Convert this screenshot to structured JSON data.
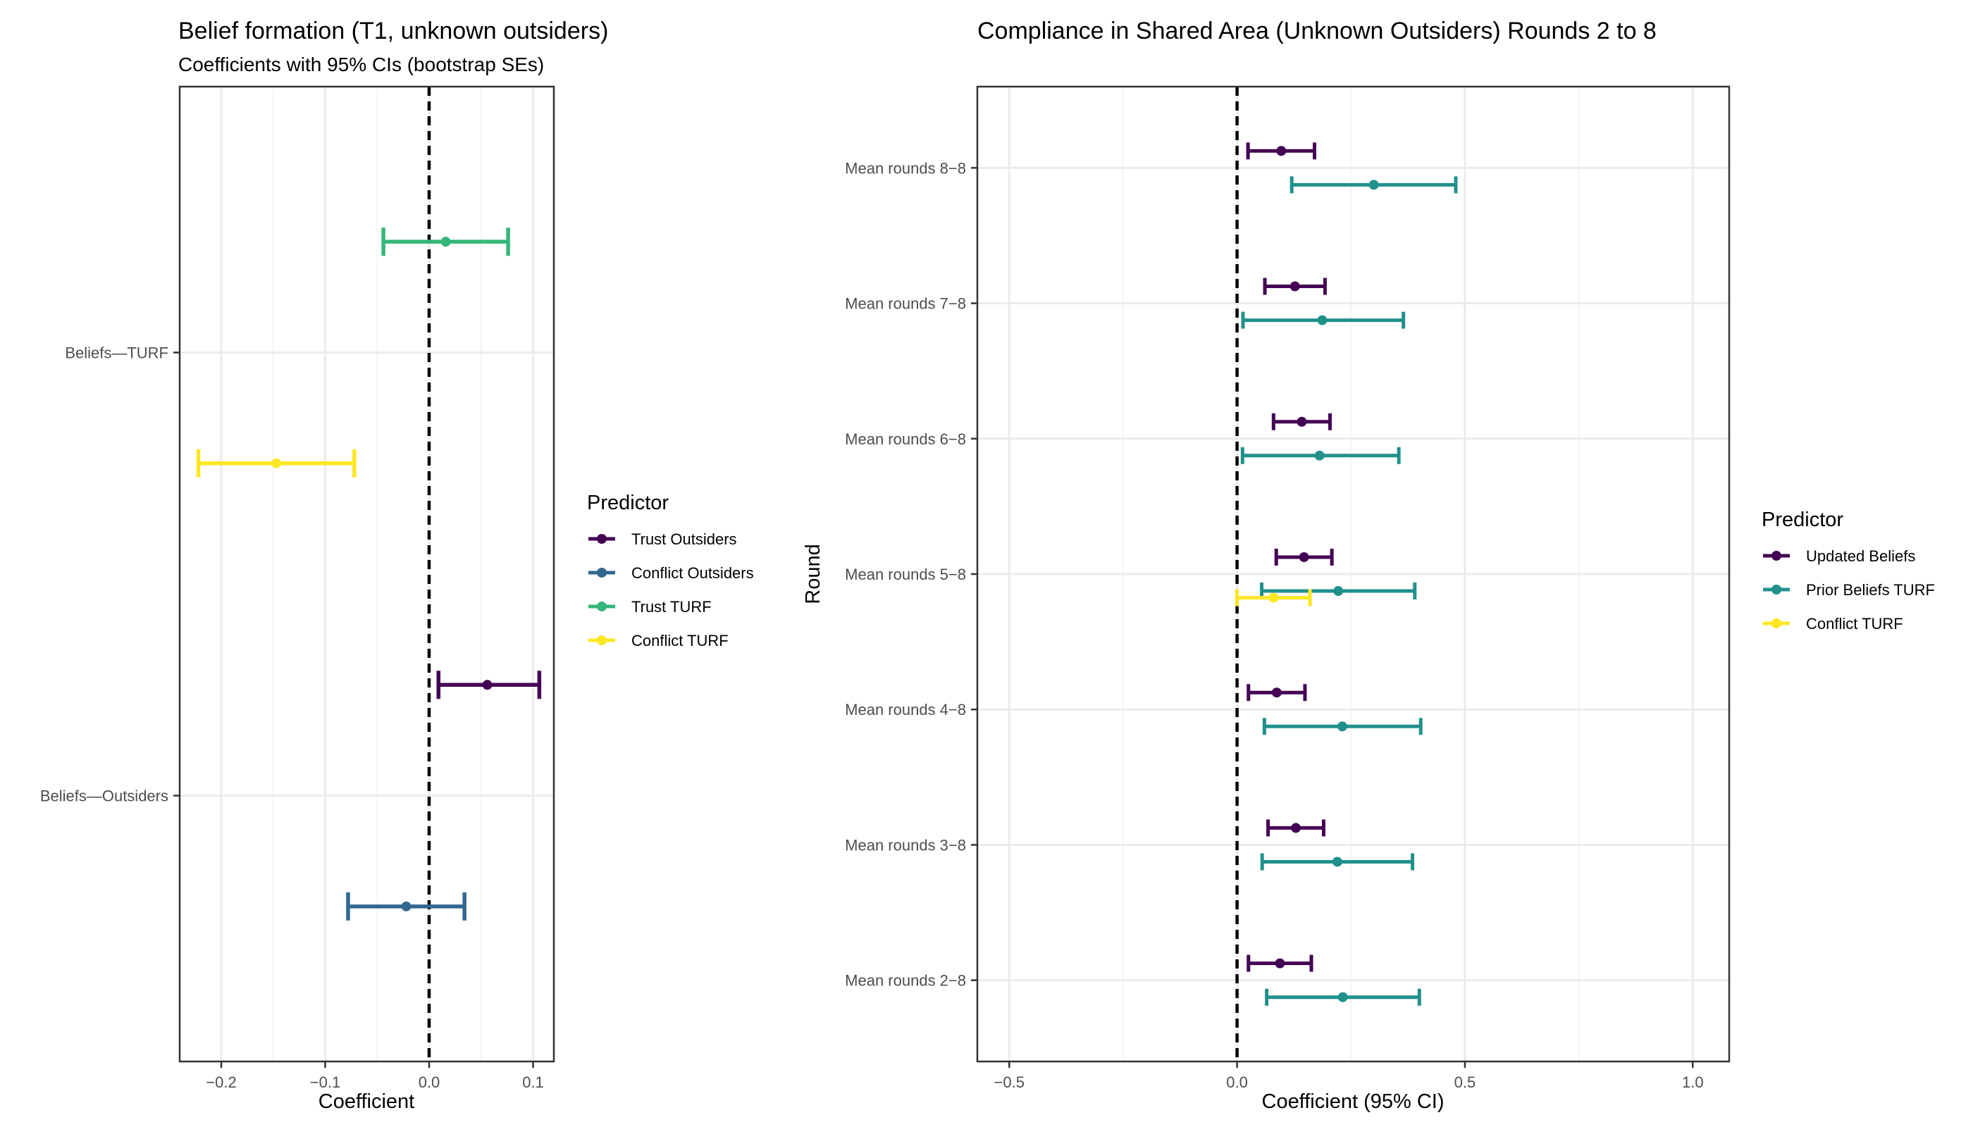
{
  "chart_data": [
    {
      "type": "errorbar",
      "title": "Belief formation (T1, unknown outsiders)",
      "subtitle": "Coefficients with 95% CIs (bootstrap SEs)",
      "xlabel": "Coefficient",
      "ylabel": "",
      "xlim": [
        -0.24,
        0.12
      ],
      "x_ticks": [
        -0.2,
        -0.1,
        0.0,
        0.1
      ],
      "x_tick_labels": [
        "−0.2",
        "−0.1",
        "0.0",
        "0.1"
      ],
      "categories": [
        "Beliefs—Outsiders",
        "Beliefs—TURF"
      ],
      "reference_line": 0.0,
      "grid": true,
      "legend": {
        "title": "Predictor",
        "position": "right",
        "entries": [
          "Trust Outsiders",
          "Conflict Outsiders",
          "Trust TURF",
          "Conflict TURF"
        ]
      },
      "series": [
        {
          "name": "Trust Outsiders",
          "color": "#440154",
          "points": [
            {
              "category": "Beliefs—Outsiders",
              "estimate": 0.056,
              "low": 0.009,
              "high": 0.106
            }
          ]
        },
        {
          "name": "Conflict Outsiders",
          "color": "#31688e",
          "points": [
            {
              "category": "Beliefs—Outsiders",
              "estimate": -0.022,
              "low": -0.078,
              "high": 0.034
            }
          ]
        },
        {
          "name": "Trust TURF",
          "color": "#35b779",
          "points": [
            {
              "category": "Beliefs—TURF",
              "estimate": 0.016,
              "low": -0.044,
              "high": 0.076
            }
          ]
        },
        {
          "name": "Conflict TURF",
          "color": "#fde725",
          "points": [
            {
              "category": "Beliefs—TURF",
              "estimate": -0.147,
              "low": -0.222,
              "high": -0.072
            }
          ]
        }
      ]
    },
    {
      "type": "errorbar",
      "title": "Compliance in Shared Area (Unknown Outsiders) Rounds 2 to 8",
      "xlabel": "Coefficient (95% CI)",
      "ylabel": "Round",
      "xlim": [
        -0.57,
        1.08
      ],
      "x_ticks": [
        -0.5,
        0.0,
        0.5,
        1.0
      ],
      "x_tick_labels": [
        "−0.5",
        "0.0",
        "0.5",
        "1.0"
      ],
      "categories": [
        "Mean rounds 2−8",
        "Mean rounds 3−8",
        "Mean rounds 4−8",
        "Mean rounds 5−8",
        "Mean rounds 6−8",
        "Mean rounds 7−8",
        "Mean rounds 8−8"
      ],
      "reference_line": 0.0,
      "grid": true,
      "legend": {
        "title": "Predictor",
        "position": "right",
        "entries": [
          "Updated Beliefs",
          "Prior Beliefs TURF",
          "Conflict TURF"
        ]
      },
      "series": [
        {
          "name": "Updated Beliefs",
          "color": "#440154",
          "points": [
            {
              "category": "Mean rounds 2−8",
              "estimate": 0.094,
              "low": 0.025,
              "high": 0.163
            },
            {
              "category": "Mean rounds 3−8",
              "estimate": 0.129,
              "low": 0.068,
              "high": 0.19
            },
            {
              "category": "Mean rounds 4−8",
              "estimate": 0.087,
              "low": 0.025,
              "high": 0.149
            },
            {
              "category": "Mean rounds 5−8",
              "estimate": 0.147,
              "low": 0.086,
              "high": 0.208
            },
            {
              "category": "Mean rounds 6−8",
              "estimate": 0.142,
              "low": 0.08,
              "high": 0.204
            },
            {
              "category": "Mean rounds 7−8",
              "estimate": 0.127,
              "low": 0.061,
              "high": 0.193
            },
            {
              "category": "Mean rounds 8−8",
              "estimate": 0.097,
              "low": 0.024,
              "high": 0.17
            }
          ]
        },
        {
          "name": "Prior Beliefs TURF",
          "color": "#21918c",
          "points": [
            {
              "category": "Mean rounds 2−8",
              "estimate": 0.232,
              "low": 0.065,
              "high": 0.4
            },
            {
              "category": "Mean rounds 3−8",
              "estimate": 0.22,
              "low": 0.055,
              "high": 0.385
            },
            {
              "category": "Mean rounds 4−8",
              "estimate": 0.231,
              "low": 0.06,
              "high": 0.403
            },
            {
              "category": "Mean rounds 5−8",
              "estimate": 0.222,
              "low": 0.054,
              "high": 0.39
            },
            {
              "category": "Mean rounds 6−8",
              "estimate": 0.181,
              "low": 0.012,
              "high": 0.355
            },
            {
              "category": "Mean rounds 7−8",
              "estimate": 0.187,
              "low": 0.013,
              "high": 0.365
            },
            {
              "category": "Mean rounds 8−8",
              "estimate": 0.3,
              "low": 0.12,
              "high": 0.48
            }
          ]
        },
        {
          "name": "Conflict TURF",
          "color": "#fde725",
          "points": [
            {
              "category": "Mean rounds 5−8",
              "estimate": 0.08,
              "low": 0.0,
              "high": 0.16
            }
          ]
        }
      ]
    }
  ]
}
